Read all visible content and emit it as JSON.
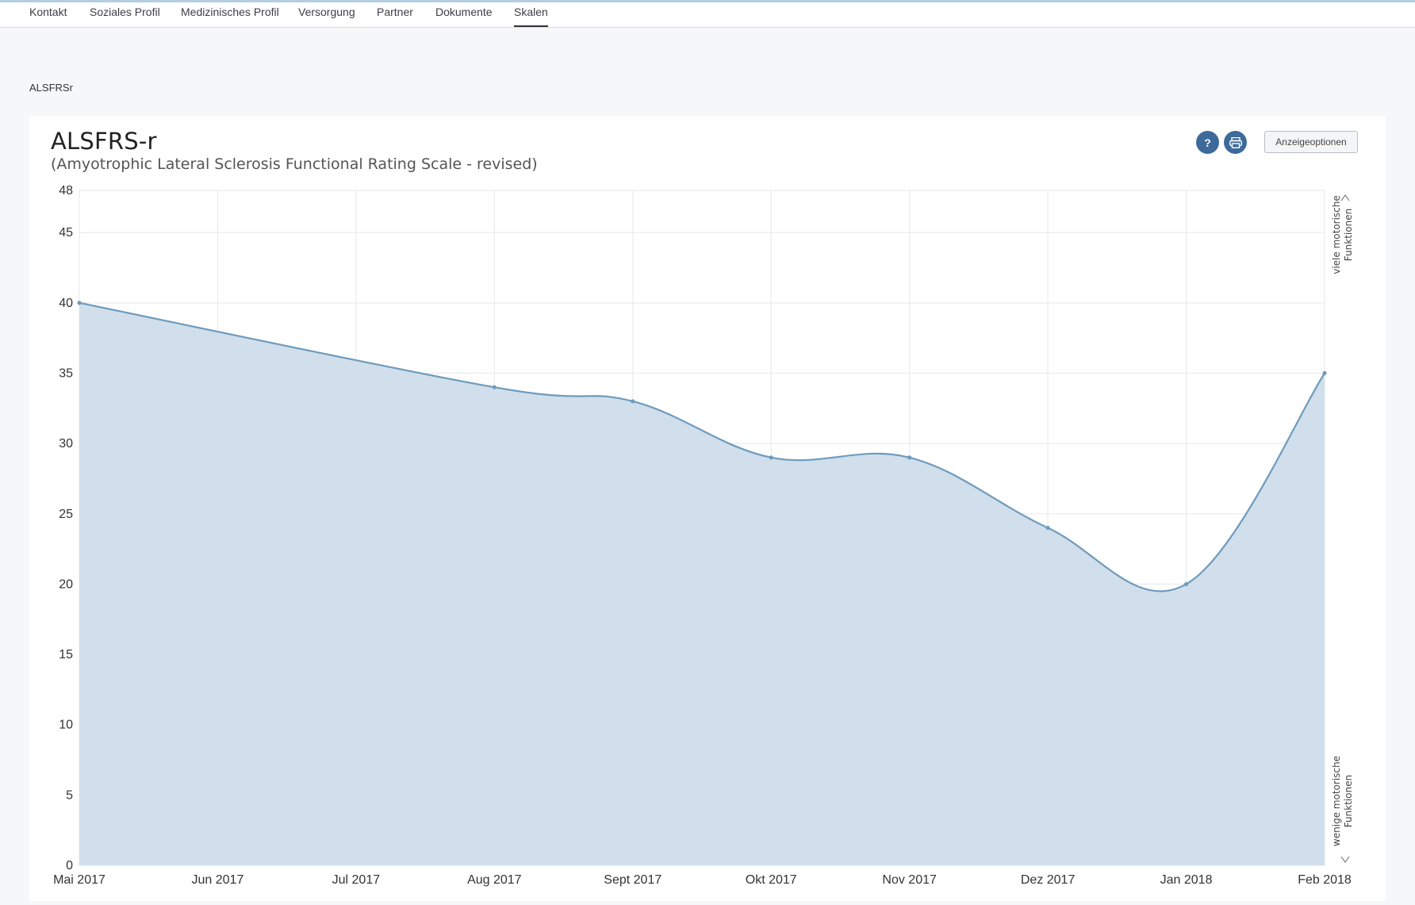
{
  "tabs": [
    {
      "label": "Kontakt",
      "active": false
    },
    {
      "label": "Soziales Profil",
      "active": false
    },
    {
      "label": "Medizinisches Profil",
      "active": false
    },
    {
      "label": "Versorgung",
      "active": false
    },
    {
      "label": "Partner",
      "active": false
    },
    {
      "label": "Dokumente",
      "active": false
    },
    {
      "label": "Skalen",
      "active": true
    }
  ],
  "section_label": "ALSFRSr",
  "card": {
    "title": "ALSFRS-r",
    "subtitle": "(Amyotrophic Lateral Sclerosis Functional Rating Scale - revised)",
    "help_icon": "question-icon",
    "print_icon": "printer-icon",
    "options_label": "Anzeigeoptionen"
  },
  "colors": {
    "accent": "#3d6a9a",
    "line": "#6f9bbd",
    "fill": "#d0dfeb",
    "grid": "#e6e8ea"
  },
  "chart_data": {
    "type": "area",
    "x": [
      "Mai 2017",
      "Jun 2017",
      "Jul 2017",
      "Aug 2017",
      "Sept 2017",
      "Okt 2017",
      "Nov 2017",
      "Dez 2017",
      "Jan 2018",
      "Feb 2018"
    ],
    "series": [
      {
        "points": [
          {
            "x": "Mai 2017",
            "y": 40
          },
          {
            "x": "Aug 2017",
            "y": 34
          },
          {
            "x": "Sept 2017",
            "y": 33
          },
          {
            "x": "Okt 2017",
            "y": 29
          },
          {
            "x": "Nov 2017",
            "y": 29
          },
          {
            "x": "Dez 2017",
            "y": 24
          },
          {
            "x": "Jan 2018",
            "y": 20
          },
          {
            "x": "Feb 2018",
            "y": 35
          }
        ]
      }
    ],
    "ylim": [
      0,
      48
    ],
    "yticks": [
      0,
      5,
      10,
      15,
      20,
      25,
      30,
      35,
      40,
      45,
      48
    ],
    "right_label_top": [
      "viele motorische",
      "Funktionen"
    ],
    "right_label_bottom": [
      "wenige motorische",
      "Funktionen"
    ],
    "grid": true
  }
}
